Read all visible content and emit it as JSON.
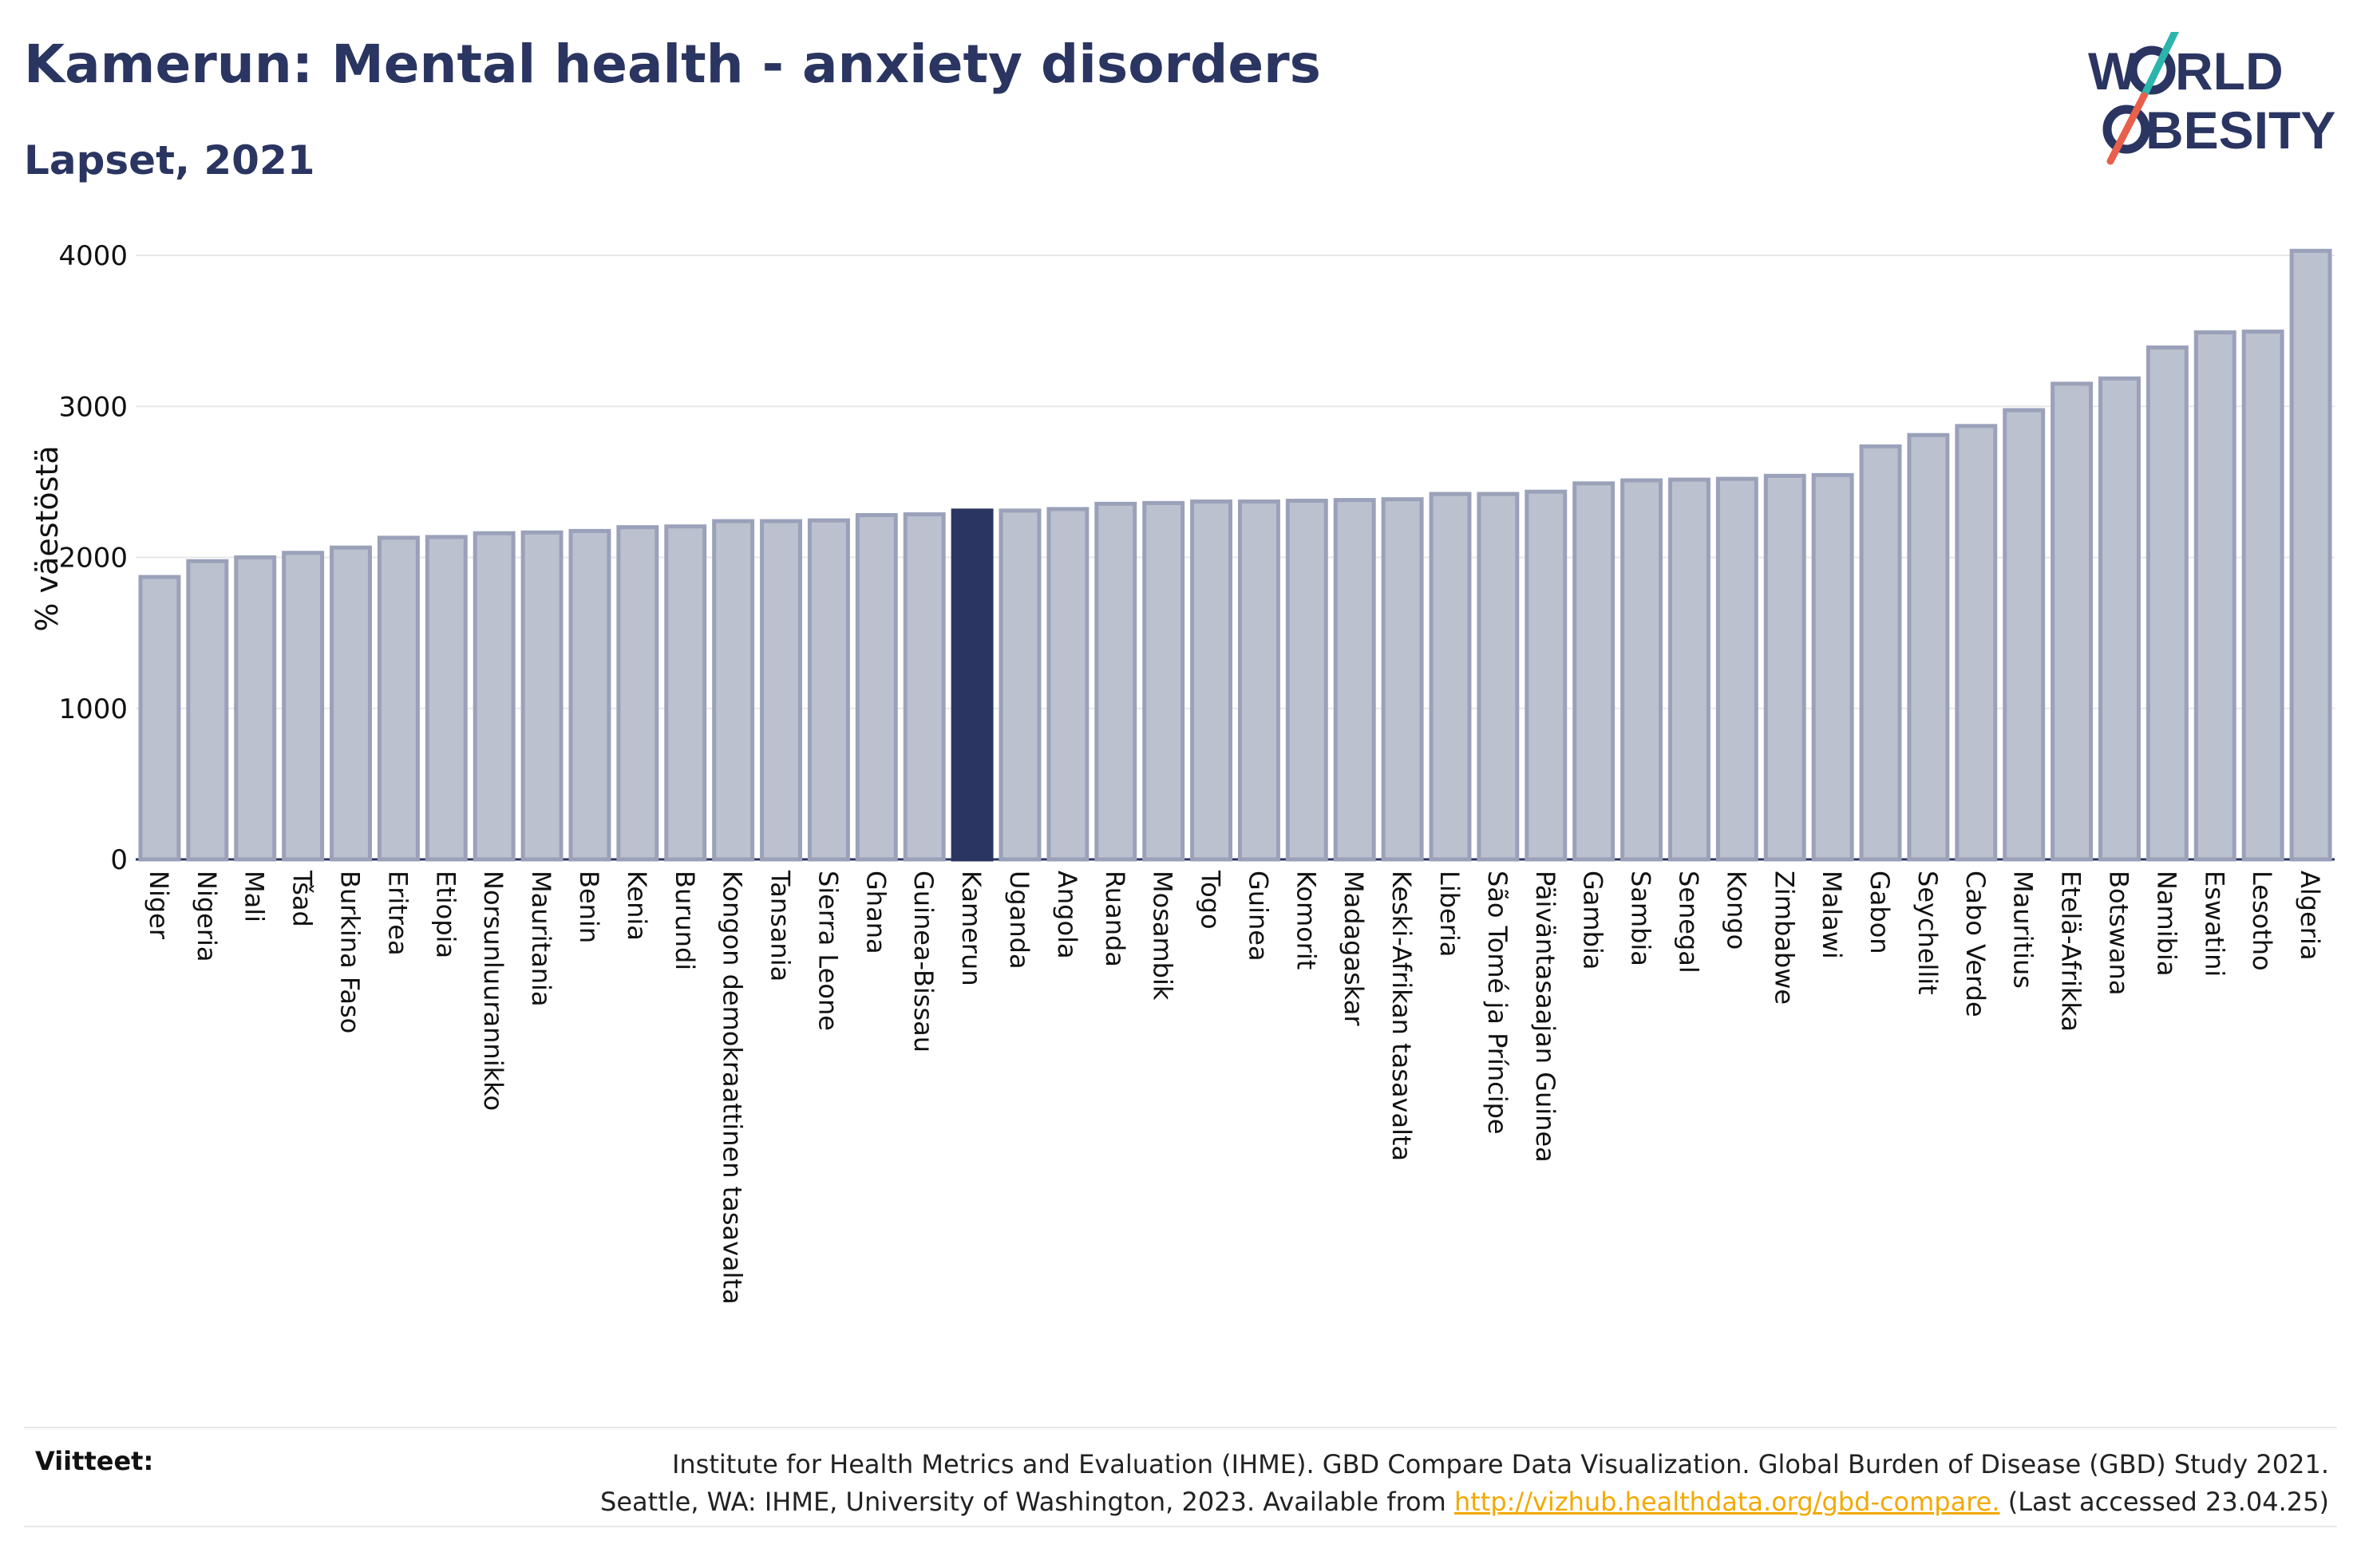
{
  "header": {
    "title": "Kamerun: Mental health - anxiety disorders",
    "subtitle": "Lapset, 2021"
  },
  "logo": {
    "line1": "W  RLD",
    "line2": "  BESITY",
    "text": "WORLD OBESITY",
    "colors": {
      "navy": "#2a3561",
      "teal": "#2bb5ad",
      "coral": "#e8604c"
    }
  },
  "colors": {
    "bar_fill": "#bcc1cf",
    "bar_stroke": "#9aa1b9",
    "highlight": "#2a3561",
    "grid": "#e8e8e8",
    "text": "#2a3561",
    "link": "#f2a900"
  },
  "chart_data": {
    "type": "bar",
    "title": "Kamerun: Mental health - anxiety disorders",
    "subtitle": "Lapset, 2021",
    "ylabel": "% väestöstä",
    "xlabel": "",
    "ylim": [
      0,
      4150
    ],
    "yticks": [
      0,
      1000,
      2000,
      3000,
      4000
    ],
    "grid": true,
    "highlight": "Kamerun",
    "categories": [
      "Niger",
      "Nigeria",
      "Mali",
      "Tšad",
      "Burkina Faso",
      "Eritrea",
      "Etiopia",
      "Norsunluurannikko",
      "Mauritania",
      "Benin",
      "Kenia",
      "Burundi",
      "Kongon demokraattinen tasavalta",
      "Tansania",
      "Sierra Leone",
      "Ghana",
      "Guinea-Bissau",
      "Kamerun",
      "Uganda",
      "Angola",
      "Ruanda",
      "Mosambik",
      "Togo",
      "Guinea",
      "Komorit",
      "Madagaskar",
      "Keski-Afrikan tasavalta",
      "Liberia",
      "São Tomé ja Príncipe",
      "Päiväntasaajan Guinea",
      "Gambia",
      "Sambia",
      "Senegal",
      "Kongo",
      "Zimbabwe",
      "Malawi",
      "Gabon",
      "Seychellit",
      "Cabo Verde",
      "Mauritius",
      "Etelä-Afrikka",
      "Botswana",
      "Namibia",
      "Eswatini",
      "Lesotho",
      "Algeria"
    ],
    "values": [
      1870,
      1975,
      2000,
      2030,
      2065,
      2130,
      2135,
      2160,
      2165,
      2175,
      2200,
      2205,
      2240,
      2240,
      2245,
      2280,
      2285,
      2310,
      2310,
      2320,
      2355,
      2360,
      2370,
      2370,
      2375,
      2380,
      2385,
      2420,
      2420,
      2435,
      2490,
      2510,
      2515,
      2520,
      2540,
      2545,
      2735,
      2810,
      2870,
      2975,
      3150,
      3185,
      3390,
      3490,
      3495,
      4030
    ]
  },
  "footer": {
    "label": "Viitteet:",
    "line1": "Institute for Health Metrics and Evaluation (IHME). GBD Compare Data Visualization. Global Burden of Disease (GBD) Study 2021.",
    "line2_pre": "Seattle, WA: IHME, University of Washington, 2023. Available from ",
    "link": "http://vizhub.healthdata.org/gbd-compare.",
    "line2_post": " (Last accessed 23.04.25)"
  }
}
